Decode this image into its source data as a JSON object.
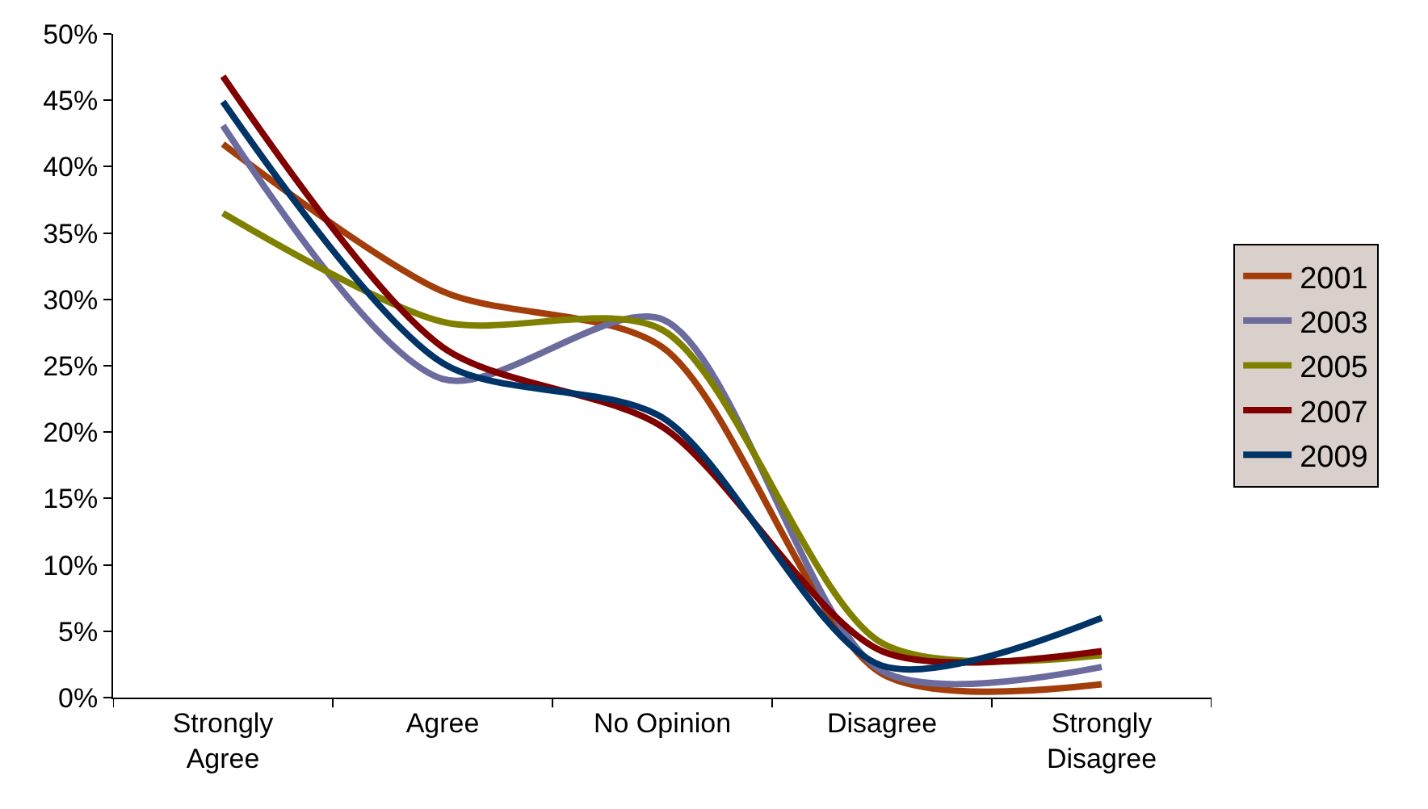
{
  "chart_data": {
    "type": "line",
    "categories": [
      "Strongly Agree",
      "Agree",
      "No Opinion",
      "Disagree",
      "Strongly Disagree"
    ],
    "series": [
      {
        "name": "2001",
        "color": "#a33d0a",
        "values": [
          41.7,
          30.6,
          26.4,
          1.8,
          1.0
        ]
      },
      {
        "name": "2003",
        "color": "#6b6b9e",
        "values": [
          43.1,
          24.0,
          28.5,
          2.0,
          2.3
        ]
      },
      {
        "name": "2005",
        "color": "#808000",
        "values": [
          36.5,
          28.3,
          27.7,
          4.1,
          3.2
        ]
      },
      {
        "name": "2007",
        "color": "#800000",
        "values": [
          46.8,
          26.4,
          20.4,
          3.5,
          3.5
        ]
      },
      {
        "name": "2009",
        "color": "#003366",
        "values": [
          44.9,
          25.2,
          21.1,
          2.4,
          6.0
        ]
      }
    ],
    "ylim": [
      0,
      50
    ],
    "yticks": [
      {
        "value": 0,
        "label": "0%"
      },
      {
        "value": 5,
        "label": "5%"
      },
      {
        "value": 10,
        "label": "10%"
      },
      {
        "value": 15,
        "label": "15%"
      },
      {
        "value": 20,
        "label": "20%"
      },
      {
        "value": 25,
        "label": "25%"
      },
      {
        "value": 30,
        "label": "30%"
      },
      {
        "value": 35,
        "label": "35%"
      },
      {
        "value": 40,
        "label": "40%"
      },
      {
        "value": 45,
        "label": "45%"
      },
      {
        "value": 50,
        "label": "50%"
      }
    ],
    "legend": "right",
    "marker": "none",
    "line_style": "solid"
  }
}
